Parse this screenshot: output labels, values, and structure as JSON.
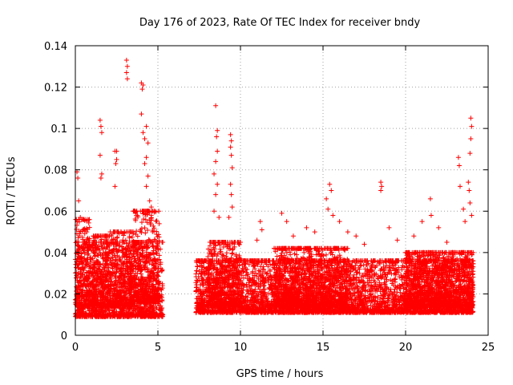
{
  "chart_data": {
    "type": "scatter",
    "title": "Day 176 of 2023, Rate Of TEC Index for receiver bndy",
    "xlabel": "GPS time / hours",
    "ylabel": "ROTI / TECUs",
    "xlim": [
      0,
      25
    ],
    "ylim": [
      0,
      0.14
    ],
    "xticks": [
      0,
      5,
      10,
      15,
      20,
      25
    ],
    "yticks": [
      0,
      0.02,
      0.04,
      0.06,
      0.08,
      0.1,
      0.12,
      0.14
    ],
    "grid": true,
    "marker": "+",
    "color": "#ff0000",
    "series": [
      {
        "name": "ROTI",
        "points": [
          [
            0.1,
            0.079
          ],
          [
            0.15,
            0.076
          ],
          [
            0.2,
            0.065
          ],
          [
            0.3,
            0.057
          ],
          [
            0.25,
            0.049
          ],
          [
            1.5,
            0.104
          ],
          [
            1.55,
            0.101
          ],
          [
            1.6,
            0.098
          ],
          [
            1.5,
            0.087
          ],
          [
            1.6,
            0.078
          ],
          [
            1.55,
            0.076
          ],
          [
            2.4,
            0.089
          ],
          [
            2.5,
            0.089
          ],
          [
            2.45,
            0.083
          ],
          [
            2.5,
            0.085
          ],
          [
            2.4,
            0.072
          ],
          [
            3.1,
            0.133
          ],
          [
            3.15,
            0.13
          ],
          [
            3.1,
            0.127
          ],
          [
            3.15,
            0.124
          ],
          [
            4.0,
            0.122
          ],
          [
            4.05,
            0.119
          ],
          [
            4.1,
            0.121
          ],
          [
            4.0,
            0.107
          ],
          [
            4.1,
            0.098
          ],
          [
            4.2,
            0.095
          ],
          [
            4.3,
            0.101
          ],
          [
            4.4,
            0.093
          ],
          [
            4.3,
            0.086
          ],
          [
            4.2,
            0.083
          ],
          [
            4.4,
            0.077
          ],
          [
            4.3,
            0.072
          ],
          [
            4.5,
            0.065
          ],
          [
            4.6,
            0.062
          ],
          [
            4.4,
            0.06
          ],
          [
            8.5,
            0.111
          ],
          [
            8.6,
            0.099
          ],
          [
            8.55,
            0.096
          ],
          [
            8.6,
            0.089
          ],
          [
            8.5,
            0.084
          ],
          [
            8.4,
            0.078
          ],
          [
            8.6,
            0.073
          ],
          [
            8.5,
            0.068
          ],
          [
            8.4,
            0.06
          ],
          [
            8.7,
            0.057
          ],
          [
            9.4,
            0.097
          ],
          [
            9.45,
            0.094
          ],
          [
            9.4,
            0.091
          ],
          [
            9.45,
            0.087
          ],
          [
            9.5,
            0.081
          ],
          [
            9.4,
            0.073
          ],
          [
            9.45,
            0.068
          ],
          [
            9.5,
            0.062
          ],
          [
            9.3,
            0.057
          ],
          [
            11.2,
            0.055
          ],
          [
            11.0,
            0.046
          ],
          [
            11.3,
            0.051
          ],
          [
            12.5,
            0.059
          ],
          [
            12.8,
            0.055
          ],
          [
            13.2,
            0.048
          ],
          [
            14.0,
            0.052
          ],
          [
            14.5,
            0.05
          ],
          [
            15.2,
            0.066
          ],
          [
            15.4,
            0.073
          ],
          [
            15.5,
            0.07
          ],
          [
            15.3,
            0.061
          ],
          [
            15.6,
            0.058
          ],
          [
            16.0,
            0.055
          ],
          [
            16.5,
            0.05
          ],
          [
            17.0,
            0.048
          ],
          [
            17.5,
            0.044
          ],
          [
            18.5,
            0.074
          ],
          [
            18.55,
            0.072
          ],
          [
            18.5,
            0.07
          ],
          [
            19.0,
            0.052
          ],
          [
            19.5,
            0.046
          ],
          [
            20.5,
            0.048
          ],
          [
            21.0,
            0.055
          ],
          [
            21.5,
            0.066
          ],
          [
            21.55,
            0.058
          ],
          [
            22.0,
            0.052
          ],
          [
            22.5,
            0.045
          ],
          [
            23.2,
            0.086
          ],
          [
            23.25,
            0.082
          ],
          [
            23.3,
            0.072
          ],
          [
            23.5,
            0.061
          ],
          [
            23.6,
            0.055
          ],
          [
            23.8,
            0.074
          ],
          [
            23.85,
            0.07
          ],
          [
            23.9,
            0.064
          ],
          [
            24.0,
            0.058
          ],
          [
            23.95,
            0.105
          ],
          [
            24.0,
            0.101
          ],
          [
            23.95,
            0.095
          ],
          [
            23.9,
            0.088
          ]
        ]
      }
    ],
    "density_bands": [
      {
        "x0": 0.0,
        "x1": 5.3,
        "y0": 0.003,
        "y1": 0.045
      },
      {
        "x0": 0.0,
        "x1": 1.0,
        "y0": 0.008,
        "y1": 0.056
      },
      {
        "x0": 1.0,
        "x1": 2.0,
        "y0": 0.008,
        "y1": 0.048
      },
      {
        "x0": 2.0,
        "x1": 3.5,
        "y0": 0.008,
        "y1": 0.05
      },
      {
        "x0": 3.5,
        "x1": 5.1,
        "y0": 0.01,
        "y1": 0.06
      },
      {
        "x0": 7.3,
        "x1": 24.1,
        "y0": 0.005,
        "y1": 0.036
      },
      {
        "x0": 8.0,
        "x1": 10.0,
        "y0": 0.008,
        "y1": 0.045
      },
      {
        "x0": 12.0,
        "x1": 16.5,
        "y0": 0.008,
        "y1": 0.042
      },
      {
        "x0": 20.0,
        "x1": 24.1,
        "y0": 0.008,
        "y1": 0.04
      }
    ]
  }
}
